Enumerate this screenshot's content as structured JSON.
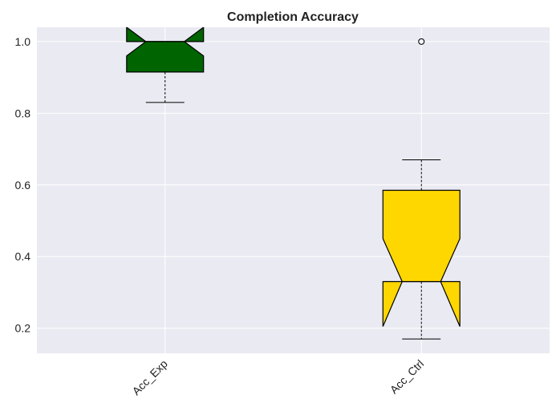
{
  "chart_data": {
    "type": "box",
    "title": "Completion Accuracy",
    "xlabel": "",
    "ylabel": "",
    "categories": [
      "Acc_Exp",
      "Acc_Ctrl"
    ],
    "ylim": [
      0.13,
      1.04
    ],
    "yticks": [
      0.2,
      0.4,
      0.6,
      0.8,
      1.0
    ],
    "ytick_labels": [
      "0.2",
      "0.4",
      "0.6",
      "0.8",
      "1.0"
    ],
    "notched": true,
    "grid": true,
    "series": [
      {
        "category": "Acc_Exp",
        "color": "#006400",
        "whisker_low": 0.83,
        "q1": 0.915,
        "median": 1.0,
        "q3": 1.0,
        "whisker_high": 1.0,
        "notch_low": 0.96,
        "notch_high": 1.04,
        "outliers": []
      },
      {
        "category": "Acc_Ctrl",
        "color": "#FFD700",
        "whisker_low": 0.17,
        "q1": 0.33,
        "median": 0.33,
        "q3": 0.585,
        "whisker_high": 0.67,
        "notch_low": 0.205,
        "notch_high": 0.45,
        "outliers": [
          1.0
        ]
      }
    ]
  }
}
